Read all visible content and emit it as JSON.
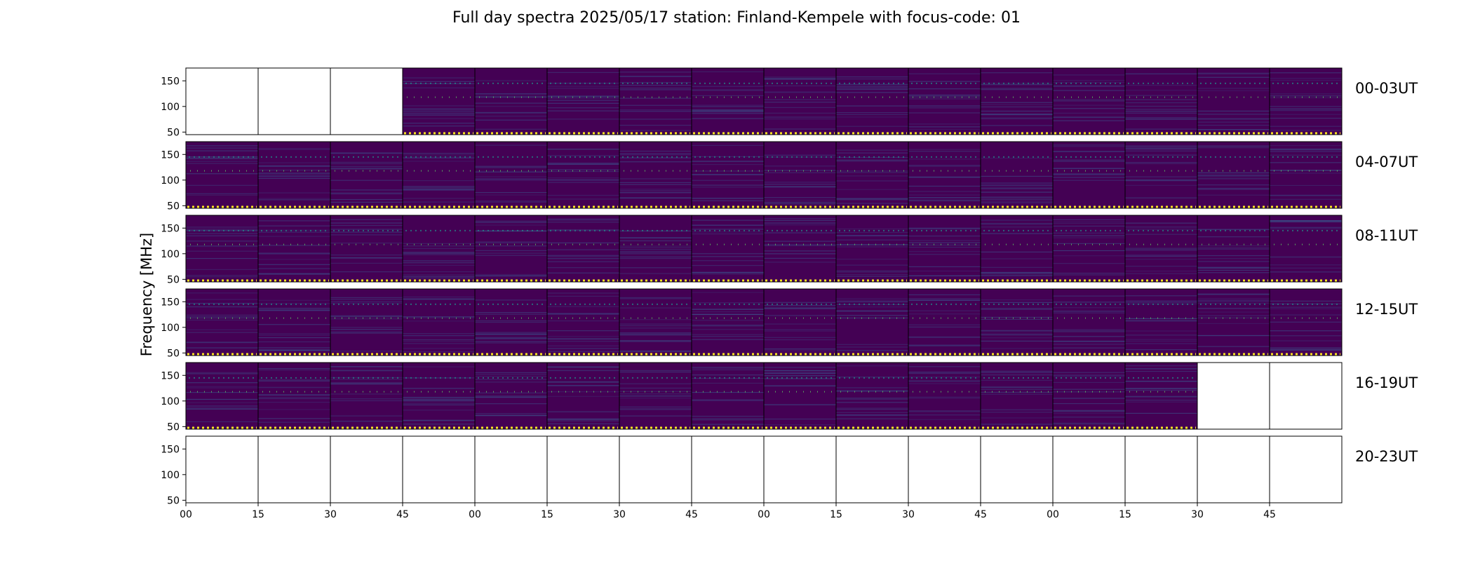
{
  "chart_data": {
    "type": "heatmap",
    "title": "Full day spectra 2025/05/17 station: Finland-Kempele with focus-code: 01",
    "ylabel": "Frequency [MHz]",
    "xlabel": "",
    "y_ticks": [
      "150",
      "100",
      "50"
    ],
    "y_tick_values": [
      150,
      100,
      50
    ],
    "ylim": [
      45,
      175
    ],
    "x_ticks": [
      "00",
      "15",
      "30",
      "45",
      "00",
      "15",
      "30",
      "45",
      "00",
      "15",
      "30",
      "45",
      "00",
      "15",
      "30",
      "45"
    ],
    "rows": [
      {
        "label": "00-03UT",
        "panels": [
          false,
          false,
          false,
          true,
          true,
          true,
          true,
          true,
          true,
          true,
          true,
          true,
          true,
          true,
          true,
          true
        ]
      },
      {
        "label": "04-07UT",
        "panels": [
          true,
          true,
          true,
          true,
          true,
          true,
          true,
          true,
          true,
          true,
          true,
          true,
          true,
          true,
          true,
          true
        ]
      },
      {
        "label": "08-11UT",
        "panels": [
          true,
          true,
          true,
          true,
          true,
          true,
          true,
          true,
          true,
          true,
          true,
          true,
          true,
          true,
          true,
          true
        ]
      },
      {
        "label": "12-15UT",
        "panels": [
          true,
          true,
          true,
          true,
          true,
          true,
          true,
          true,
          true,
          true,
          true,
          true,
          true,
          true,
          true,
          true
        ]
      },
      {
        "label": "16-19UT",
        "panels": [
          true,
          true,
          true,
          true,
          true,
          true,
          true,
          true,
          true,
          true,
          true,
          true,
          true,
          true,
          false,
          false
        ]
      },
      {
        "label": "20-23UT",
        "panels": [
          false,
          false,
          false,
          false,
          false,
          false,
          false,
          false,
          false,
          false,
          false,
          false,
          false,
          false,
          false,
          false
        ]
      }
    ],
    "colormap": [
      "#440154",
      "#3b528b",
      "#21918c",
      "#5ec962",
      "#fde725"
    ],
    "background_color": "#440154"
  }
}
